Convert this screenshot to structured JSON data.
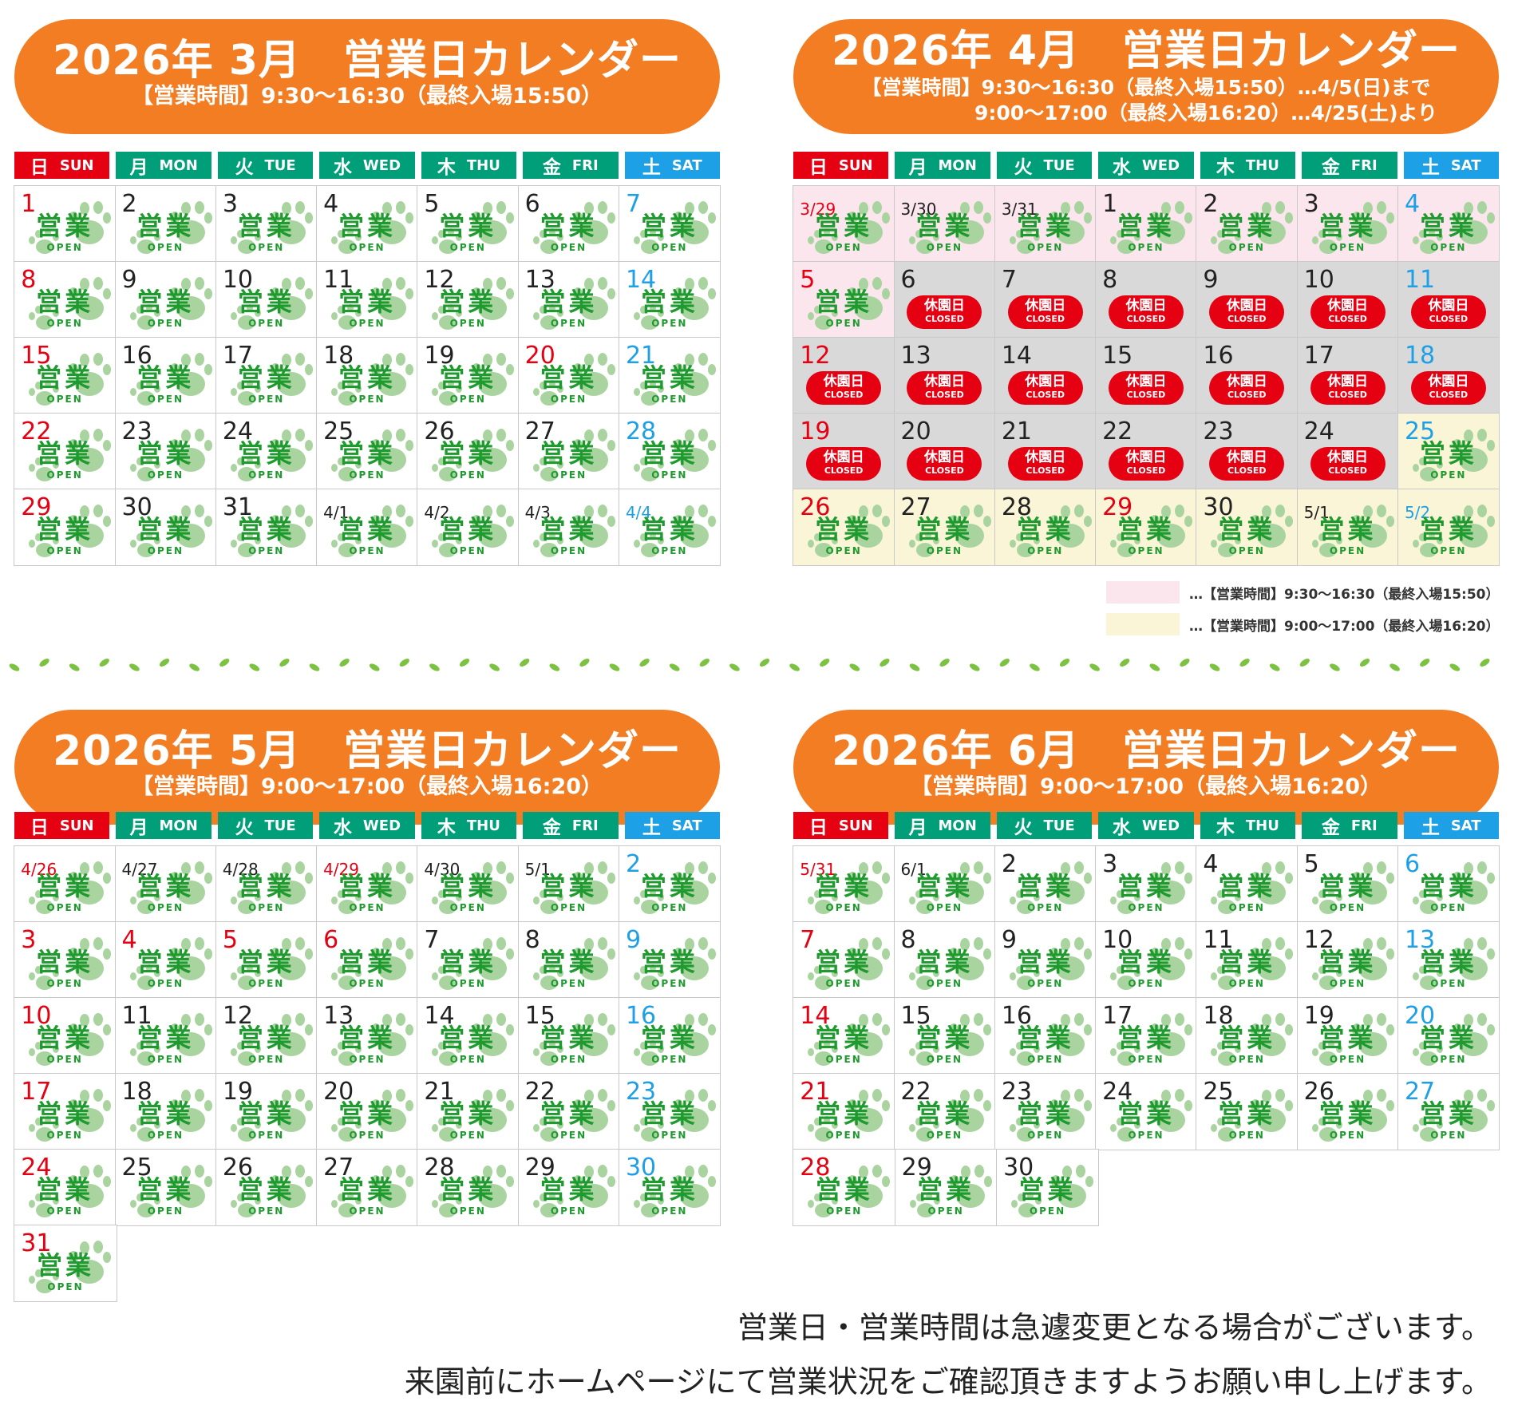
{
  "weekdays": [
    {
      "jp": "日",
      "en": "SUN"
    },
    {
      "jp": "月",
      "en": "MON"
    },
    {
      "jp": "火",
      "en": "TUE"
    },
    {
      "jp": "水",
      "en": "WED"
    },
    {
      "jp": "木",
      "en": "THU"
    },
    {
      "jp": "金",
      "en": "FRI"
    },
    {
      "jp": "土",
      "en": "SAT"
    }
  ],
  "labels": {
    "open_jp": "営業",
    "open_en": "OPEN",
    "closed_jp": "休園日",
    "closed_en": "CLOSED"
  },
  "colors": {
    "banner": "#f37d22",
    "sun": "#e50012",
    "weekday": "#009f7a",
    "sat": "#1ea0e6",
    "open_text": "#1e9a2e",
    "paw": "#a9d4a0",
    "closed": "#e50012",
    "pink_hours": "#fce6ee",
    "cream_hours": "#fbf5d8",
    "closed_bg": "#d9d9d9",
    "leaf": "#7cc241"
  },
  "calendars": [
    {
      "title": "2026年 3月　営業日カレンダー",
      "hours": [
        "【営業時間】9:30〜16:30（最終入場15:50）"
      ],
      "weeks": [
        [
          {
            "d": "1",
            "s": "open"
          },
          {
            "d": "2",
            "s": "open"
          },
          {
            "d": "3",
            "s": "open"
          },
          {
            "d": "4",
            "s": "open"
          },
          {
            "d": "5",
            "s": "open"
          },
          {
            "d": "6",
            "s": "open"
          },
          {
            "d": "7",
            "s": "open"
          }
        ],
        [
          {
            "d": "8",
            "s": "open"
          },
          {
            "d": "9",
            "s": "open"
          },
          {
            "d": "10",
            "s": "open"
          },
          {
            "d": "11",
            "s": "open"
          },
          {
            "d": "12",
            "s": "open"
          },
          {
            "d": "13",
            "s": "open"
          },
          {
            "d": "14",
            "s": "open"
          }
        ],
        [
          {
            "d": "15",
            "s": "open"
          },
          {
            "d": "16",
            "s": "open"
          },
          {
            "d": "17",
            "s": "open"
          },
          {
            "d": "18",
            "s": "open"
          },
          {
            "d": "19",
            "s": "open"
          },
          {
            "d": "20",
            "s": "open",
            "holiday": true
          },
          {
            "d": "21",
            "s": "open"
          }
        ],
        [
          {
            "d": "22",
            "s": "open"
          },
          {
            "d": "23",
            "s": "open"
          },
          {
            "d": "24",
            "s": "open"
          },
          {
            "d": "25",
            "s": "open"
          },
          {
            "d": "26",
            "s": "open"
          },
          {
            "d": "27",
            "s": "open"
          },
          {
            "d": "28",
            "s": "open"
          }
        ],
        [
          {
            "d": "29",
            "s": "open"
          },
          {
            "d": "30",
            "s": "open"
          },
          {
            "d": "31",
            "s": "open"
          },
          {
            "d": "4/1",
            "s": "open"
          },
          {
            "d": "4/2",
            "s": "open"
          },
          {
            "d": "4/3",
            "s": "open"
          },
          {
            "d": "4/4",
            "s": "open"
          }
        ]
      ]
    },
    {
      "title": "2026年 4月　営業日カレンダー",
      "hours": [
        "【営業時間】9:30〜16:30（最終入場15:50）…4/5(日)まで",
        "9:00〜17:00（最終入場16:20）…4/25(土)より"
      ],
      "weeks": [
        [
          {
            "d": "3/29",
            "s": "open",
            "t": "pink"
          },
          {
            "d": "3/30",
            "s": "open",
            "t": "pink"
          },
          {
            "d": "3/31",
            "s": "open",
            "t": "pink"
          },
          {
            "d": "1",
            "s": "open",
            "t": "pink"
          },
          {
            "d": "2",
            "s": "open",
            "t": "pink"
          },
          {
            "d": "3",
            "s": "open",
            "t": "pink"
          },
          {
            "d": "4",
            "s": "open",
            "t": "pink"
          }
        ],
        [
          {
            "d": "5",
            "s": "open",
            "t": "pink"
          },
          {
            "d": "6",
            "s": "closed",
            "t": "gray"
          },
          {
            "d": "7",
            "s": "closed",
            "t": "gray"
          },
          {
            "d": "8",
            "s": "closed",
            "t": "gray"
          },
          {
            "d": "9",
            "s": "closed",
            "t": "gray"
          },
          {
            "d": "10",
            "s": "closed",
            "t": "gray"
          },
          {
            "d": "11",
            "s": "closed",
            "t": "gray"
          }
        ],
        [
          {
            "d": "12",
            "s": "closed",
            "t": "gray"
          },
          {
            "d": "13",
            "s": "closed",
            "t": "gray"
          },
          {
            "d": "14",
            "s": "closed",
            "t": "gray"
          },
          {
            "d": "15",
            "s": "closed",
            "t": "gray"
          },
          {
            "d": "16",
            "s": "closed",
            "t": "gray"
          },
          {
            "d": "17",
            "s": "closed",
            "t": "gray"
          },
          {
            "d": "18",
            "s": "closed",
            "t": "gray"
          }
        ],
        [
          {
            "d": "19",
            "s": "closed",
            "t": "gray"
          },
          {
            "d": "20",
            "s": "closed",
            "t": "gray"
          },
          {
            "d": "21",
            "s": "closed",
            "t": "gray"
          },
          {
            "d": "22",
            "s": "closed",
            "t": "gray"
          },
          {
            "d": "23",
            "s": "closed",
            "t": "gray"
          },
          {
            "d": "24",
            "s": "closed",
            "t": "gray"
          },
          {
            "d": "25",
            "s": "open",
            "t": "cream"
          }
        ],
        [
          {
            "d": "26",
            "s": "open",
            "t": "cream"
          },
          {
            "d": "27",
            "s": "open",
            "t": "cream"
          },
          {
            "d": "28",
            "s": "open",
            "t": "cream"
          },
          {
            "d": "29",
            "s": "open",
            "t": "cream",
            "holiday": true
          },
          {
            "d": "30",
            "s": "open",
            "t": "cream"
          },
          {
            "d": "5/1",
            "s": "open",
            "t": "cream"
          },
          {
            "d": "5/2",
            "s": "open",
            "t": "cream"
          }
        ]
      ],
      "legend": [
        {
          "color": "#fce6ee",
          "text": "…【営業時間】9:30〜16:30（最終入場15:50）"
        },
        {
          "color": "#fbf5d8",
          "text": "…【営業時間】9:00〜17:00（最終入場16:20）"
        }
      ]
    },
    {
      "title": "2026年 5月　営業日カレンダー",
      "hours": [
        "【営業時間】9:00〜17:00（最終入場16:20）"
      ],
      "weeks": [
        [
          {
            "d": "4/26",
            "s": "open"
          },
          {
            "d": "4/27",
            "s": "open"
          },
          {
            "d": "4/28",
            "s": "open"
          },
          {
            "d": "4/29",
            "s": "open",
            "holiday": true
          },
          {
            "d": "4/30",
            "s": "open"
          },
          {
            "d": "5/1",
            "s": "open"
          },
          {
            "d": "2",
            "s": "open"
          }
        ],
        [
          {
            "d": "3",
            "s": "open"
          },
          {
            "d": "4",
            "s": "open",
            "holiday": true
          },
          {
            "d": "5",
            "s": "open",
            "holiday": true
          },
          {
            "d": "6",
            "s": "open",
            "holiday": true
          },
          {
            "d": "7",
            "s": "open"
          },
          {
            "d": "8",
            "s": "open"
          },
          {
            "d": "9",
            "s": "open"
          }
        ],
        [
          {
            "d": "10",
            "s": "open"
          },
          {
            "d": "11",
            "s": "open"
          },
          {
            "d": "12",
            "s": "open"
          },
          {
            "d": "13",
            "s": "open"
          },
          {
            "d": "14",
            "s": "open"
          },
          {
            "d": "15",
            "s": "open"
          },
          {
            "d": "16",
            "s": "open"
          }
        ],
        [
          {
            "d": "17",
            "s": "open"
          },
          {
            "d": "18",
            "s": "open"
          },
          {
            "d": "19",
            "s": "open"
          },
          {
            "d": "20",
            "s": "open"
          },
          {
            "d": "21",
            "s": "open"
          },
          {
            "d": "22",
            "s": "open"
          },
          {
            "d": "23",
            "s": "open"
          }
        ],
        [
          {
            "d": "24",
            "s": "open"
          },
          {
            "d": "25",
            "s": "open"
          },
          {
            "d": "26",
            "s": "open"
          },
          {
            "d": "27",
            "s": "open"
          },
          {
            "d": "28",
            "s": "open"
          },
          {
            "d": "29",
            "s": "open"
          },
          {
            "d": "30",
            "s": "open"
          }
        ],
        [
          {
            "d": "31",
            "s": "open"
          },
          null,
          null,
          null,
          null,
          null,
          null
        ]
      ]
    },
    {
      "title": "2026年 6月　営業日カレンダー",
      "hours": [
        "【営業時間】9:00〜17:00（最終入場16:20）"
      ],
      "weeks": [
        [
          {
            "d": "5/31",
            "s": "open"
          },
          {
            "d": "6/1",
            "s": "open"
          },
          {
            "d": "2",
            "s": "open"
          },
          {
            "d": "3",
            "s": "open"
          },
          {
            "d": "4",
            "s": "open"
          },
          {
            "d": "5",
            "s": "open"
          },
          {
            "d": "6",
            "s": "open"
          }
        ],
        [
          {
            "d": "7",
            "s": "open"
          },
          {
            "d": "8",
            "s": "open"
          },
          {
            "d": "9",
            "s": "open"
          },
          {
            "d": "10",
            "s": "open"
          },
          {
            "d": "11",
            "s": "open"
          },
          {
            "d": "12",
            "s": "open"
          },
          {
            "d": "13",
            "s": "open"
          }
        ],
        [
          {
            "d": "14",
            "s": "open"
          },
          {
            "d": "15",
            "s": "open"
          },
          {
            "d": "16",
            "s": "open"
          },
          {
            "d": "17",
            "s": "open"
          },
          {
            "d": "18",
            "s": "open"
          },
          {
            "d": "19",
            "s": "open"
          },
          {
            "d": "20",
            "s": "open"
          }
        ],
        [
          {
            "d": "21",
            "s": "open"
          },
          {
            "d": "22",
            "s": "open"
          },
          {
            "d": "23",
            "s": "open"
          },
          {
            "d": "24",
            "s": "open"
          },
          {
            "d": "25",
            "s": "open"
          },
          {
            "d": "26",
            "s": "open"
          },
          {
            "d": "27",
            "s": "open"
          }
        ],
        [
          {
            "d": "28",
            "s": "open"
          },
          {
            "d": "29",
            "s": "open"
          },
          {
            "d": "30",
            "s": "open"
          },
          null,
          null,
          null,
          null
        ]
      ]
    }
  ],
  "notice": {
    "line1": "営業日・営業時間は急遽変更となる場合がございます。",
    "line2": "来園前にホームページにて営業状況をご確認頂きますようお願い申し上げます。"
  }
}
